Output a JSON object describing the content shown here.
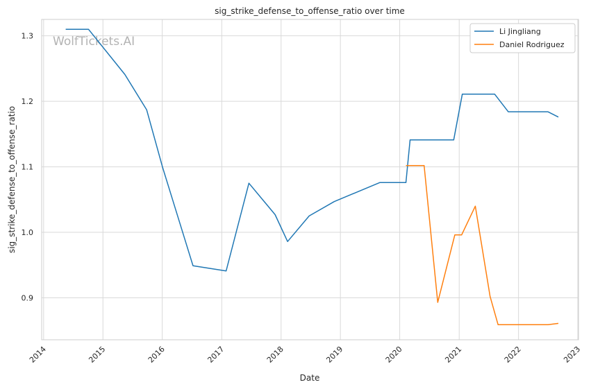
{
  "chart_data": {
    "type": "line",
    "title": "sig_strike_defense_to_offense_ratio over time",
    "xlabel": "Date",
    "ylabel": "sig_strike_defense_to_offense_ratio",
    "watermark": "WolfTickets.AI",
    "x_ticks": [
      "2014",
      "2015",
      "2016",
      "2017",
      "2018",
      "2019",
      "2020",
      "2021",
      "2022",
      "2023"
    ],
    "y_ticks": [
      "0.9",
      "1.0",
      "1.1",
      "1.2",
      "1.3"
    ],
    "xlim": [
      "2013-12-20",
      "2023-01-05"
    ],
    "ylim": [
      0.836,
      1.325
    ],
    "grid": true,
    "legend_position": "top-right",
    "series": [
      {
        "name": "Li Jingliang",
        "color": "#1f77b4",
        "points": [
          [
            "2014-05-17",
            1.31
          ],
          [
            "2014-10-04",
            1.31
          ],
          [
            "2015-05-16",
            1.241
          ],
          [
            "2015-09-27",
            1.187
          ],
          [
            "2016-01-02",
            1.1
          ],
          [
            "2016-07-08",
            0.949
          ],
          [
            "2017-01-28",
            0.941
          ],
          [
            "2017-06-17",
            1.075
          ],
          [
            "2017-11-25",
            1.027
          ],
          [
            "2018-02-10",
            0.986
          ],
          [
            "2018-06-23",
            1.025
          ],
          [
            "2018-11-24",
            1.047
          ],
          [
            "2019-08-31",
            1.076
          ],
          [
            "2020-02-08",
            1.076
          ],
          [
            "2020-03-05",
            1.141
          ],
          [
            "2020-11-28",
            1.141
          ],
          [
            "2021-01-20",
            1.211
          ],
          [
            "2021-08-07",
            1.211
          ],
          [
            "2021-10-30",
            1.184
          ],
          [
            "2022-07-01",
            1.184
          ],
          [
            "2022-09-03",
            1.176
          ]
        ]
      },
      {
        "name": "Daniel Rodriguez",
        "color": "#ff7f0e",
        "points": [
          [
            "2020-02-08",
            1.102
          ],
          [
            "2020-05-30",
            1.102
          ],
          [
            "2020-08-22",
            0.893
          ],
          [
            "2020-12-05",
            0.996
          ],
          [
            "2021-01-16",
            0.996
          ],
          [
            "2021-04-10",
            1.04
          ],
          [
            "2021-07-10",
            0.902
          ],
          [
            "2021-08-28",
            0.859
          ],
          [
            "2022-07-01",
            0.859
          ],
          [
            "2022-09-03",
            0.861
          ]
        ]
      }
    ]
  }
}
